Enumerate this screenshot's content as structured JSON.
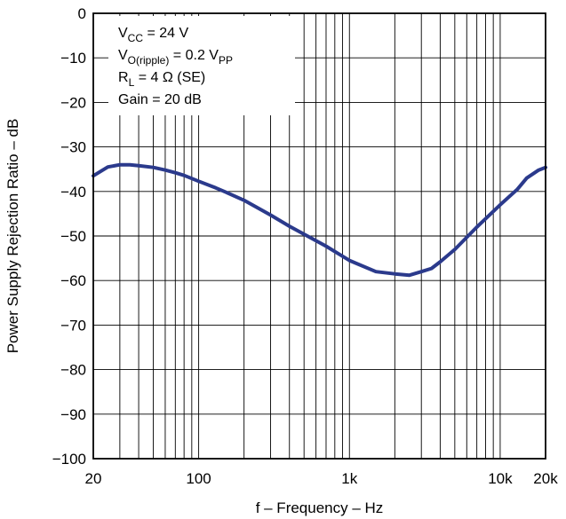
{
  "chart_data": {
    "type": "line",
    "xscale": "log",
    "xlim": [
      20,
      20000
    ],
    "ylim": [
      -100,
      0
    ],
    "xlabel": "f – Frequency – Hz",
    "ylabel": "Power Supply Rejection Ratio – dB",
    "x_tick_labels": [
      {
        "value": 20,
        "label": "20"
      },
      {
        "value": 100,
        "label": "100"
      },
      {
        "value": 1000,
        "label": "1k"
      },
      {
        "value": 10000,
        "label": "10k"
      },
      {
        "value": 20000,
        "label": "20k"
      }
    ],
    "y_ticks": [
      0,
      -10,
      -20,
      -30,
      -40,
      -50,
      -60,
      -70,
      -80,
      -90,
      -100
    ],
    "y_tick_labels": [
      "0",
      "−10",
      "−20",
      "−30",
      "−40",
      "−50",
      "−60",
      "−70",
      "−80",
      "−90",
      "−100"
    ],
    "grid": true,
    "annotations": [
      {
        "main": "V",
        "sub": "CC",
        "rest": " = 24 V"
      },
      {
        "main": "V",
        "sub": "O(ripple)",
        "rest": " = 0.2 V",
        "sub2": "PP"
      },
      {
        "main": "R",
        "sub": "L",
        "rest": " = 4 Ω (SE)"
      },
      {
        "main": "Gain = 20 dB"
      }
    ],
    "series": [
      {
        "color": "#2b3a8c",
        "x": [
          20,
          25,
          30,
          35,
          40,
          50,
          60,
          70,
          80,
          100,
          130,
          150,
          200,
          300,
          400,
          500,
          700,
          1000,
          1500,
          2000,
          2500,
          3000,
          3500,
          4000,
          5000,
          7000,
          10000,
          13000,
          15000,
          18000,
          20000
        ],
        "y": [
          -36.5,
          -34.5,
          -34,
          -34,
          -34.2,
          -34.6,
          -35.2,
          -35.8,
          -36.4,
          -37.7,
          -39.2,
          -40.1,
          -42,
          -45.3,
          -47.8,
          -49.6,
          -52.3,
          -55.5,
          -58,
          -58.5,
          -58.8,
          -58,
          -57.3,
          -55.8,
          -53,
          -48,
          -43,
          -39.5,
          -37,
          -35.2,
          -34.6
        ]
      }
    ]
  }
}
